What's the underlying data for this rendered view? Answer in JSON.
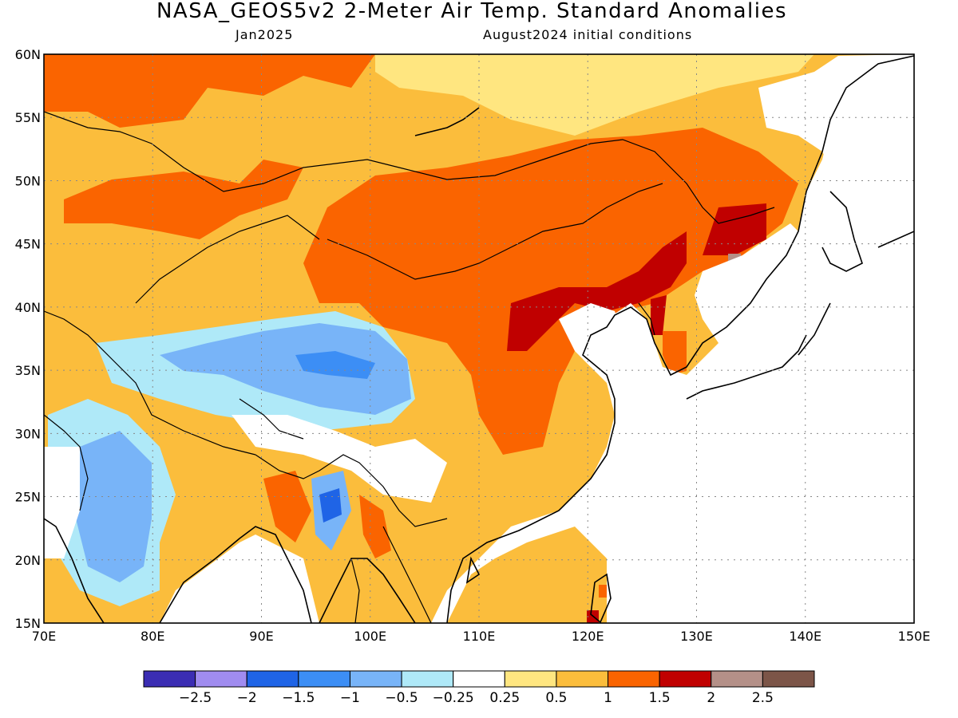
{
  "header": {
    "title": "NASA_GEOS5v2 2-Meter Air Temp. Standard Anomalies",
    "valid_month": "Jan2025",
    "initial_conditions": "August2024 initial conditions"
  },
  "map": {
    "lon_range": [
      70,
      150
    ],
    "lat_range": [
      15,
      60
    ],
    "lat_labels": [
      "15N",
      "20N",
      "25N",
      "30N",
      "35N",
      "40N",
      "45N",
      "50N",
      "55N",
      "60N"
    ],
    "lon_labels": [
      "70E",
      "80E",
      "90E",
      "100E",
      "110E",
      "120E",
      "130E",
      "140E",
      "150E"
    ],
    "grid": true,
    "region": "East Asia"
  },
  "colorbar": {
    "bins": [
      {
        "color": "#3b2db3"
      },
      {
        "color": "#a08cf0"
      },
      {
        "color": "#1f64e6"
      },
      {
        "color": "#3c8ef5"
      },
      {
        "color": "#78b4f8"
      },
      {
        "color": "#afe9f8"
      },
      {
        "color": "#ffffff"
      },
      {
        "color": "#ffe680"
      },
      {
        "color": "#fbbd3c"
      },
      {
        "color": "#fa6400"
      },
      {
        "color": "#c00000"
      },
      {
        "color": "#b49088"
      },
      {
        "color": "#7c5548"
      }
    ],
    "labels": [
      "-2.5",
      "-2",
      "-1.5",
      "-1",
      "-0.5",
      "-0.25",
      "0.25",
      "0.5",
      "1",
      "1.5",
      "2",
      "2.5"
    ]
  },
  "colors": {
    "ocean": "#ffffff",
    "coastline": "#000000",
    "weak_warm": "#ffe680",
    "warm": "#fbbd3c",
    "strong_warm": "#fa6400",
    "very_strong_warm": "#c00000",
    "extreme_warm": "#b49088",
    "weak_cool": "#afe9f8",
    "cool": "#78b4f8",
    "strong_cool": "#1f64e6"
  }
}
